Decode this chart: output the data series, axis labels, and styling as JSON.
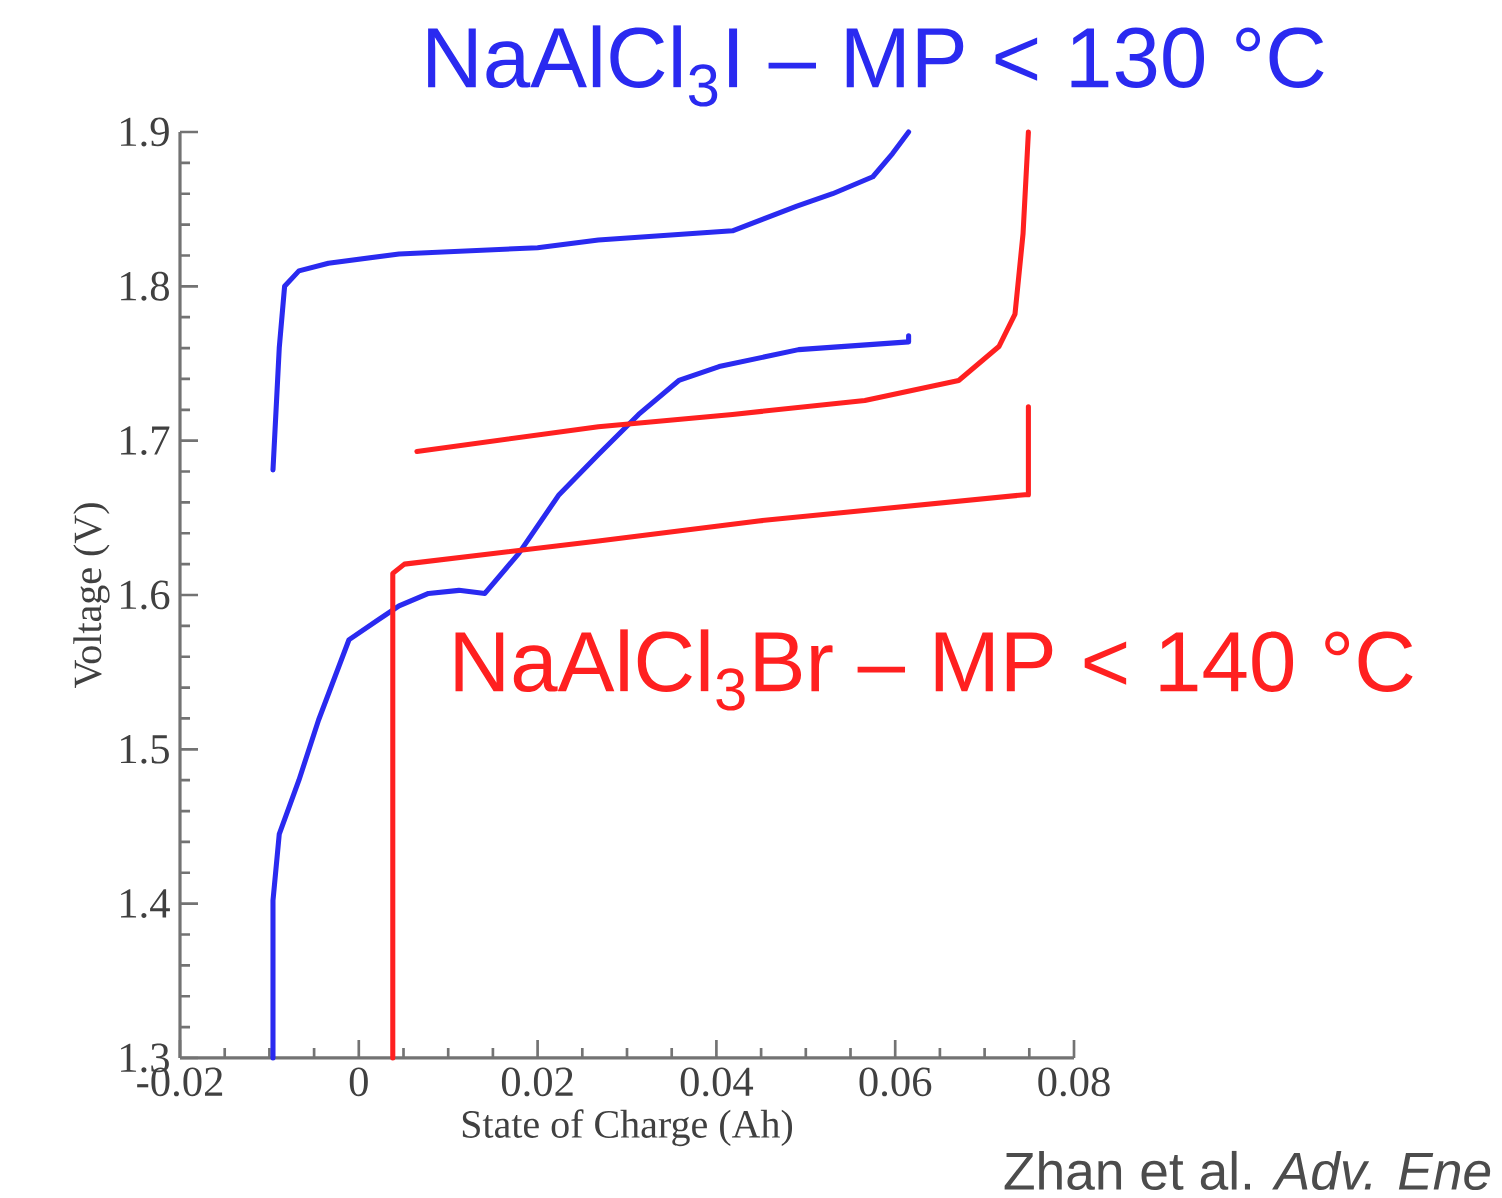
{
  "chart_data": {
    "type": "line",
    "xlabel": "State of Charge (Ah)",
    "ylabel": "Voltage (V)",
    "xlim": [
      -0.02,
      0.08
    ],
    "ylim": [
      1.3,
      1.9
    ],
    "xticks": [
      -0.02,
      0,
      0.02,
      0.04,
      0.06,
      0.08
    ],
    "yticks": [
      1.3,
      1.4,
      1.5,
      1.6,
      1.7,
      1.8,
      1.9
    ],
    "grid": false,
    "legend": false,
    "series": [
      {
        "name": "NaAlCl$_{3}$I – MP < 130 °C",
        "color": "#2a2af0",
        "x": [
          -0.0096,
          -0.0089,
          -0.0083,
          -0.0067,
          -0.0034,
          0.0045,
          0.02,
          0.0268,
          0.0418,
          0.049,
          0.053,
          0.0575,
          0.0597,
          0.0615
        ],
        "values": [
          1.681,
          1.76,
          1.8,
          1.81,
          1.815,
          1.821,
          1.825,
          1.83,
          1.836,
          1.852,
          1.86,
          1.871,
          1.886,
          1.9
        ]
      },
      {
        "color": "#2a2af0",
        "x": [
          -0.0096,
          -0.0096,
          -0.0089,
          -0.0067,
          -0.0045,
          -0.0011,
          0.0022,
          0.0045,
          0.0078,
          0.0112,
          0.0141,
          0.0179,
          0.0224,
          0.0268,
          0.0313,
          0.0358,
          0.0403,
          0.0492,
          0.0615,
          0.0615
        ],
        "values": [
          1.3,
          1.402,
          1.445,
          1.48,
          1.519,
          1.571,
          1.584,
          1.593,
          1.601,
          1.603,
          1.601,
          1.627,
          1.665,
          1.691,
          1.717,
          1.739,
          1.748,
          1.759,
          1.764,
          1.768
        ]
      },
      {
        "name": "NaAlCl$_{3}$Br – MP < 140 °C",
        "color": "#ff2020",
        "x": [
          0.0065,
          0.0268,
          0.0418,
          0.0566,
          0.0671,
          0.0716,
          0.0734,
          0.0743,
          0.0749
        ],
        "values": [
          1.693,
          1.709,
          1.717,
          1.726,
          1.739,
          1.761,
          1.782,
          1.834,
          1.9
        ]
      },
      {
        "color": "#ff2020",
        "x": [
          0.0038,
          0.0038,
          0.0051,
          0.0268,
          0.0447,
          0.0745,
          0.0749,
          0.0749
        ],
        "values": [
          1.3,
          1.614,
          1.62,
          1.635,
          1.648,
          1.665,
          1.665,
          1.722
        ]
      }
    ],
    "annotations": [
      "Zhan et al. *Adv. Ene*"
    ]
  }
}
